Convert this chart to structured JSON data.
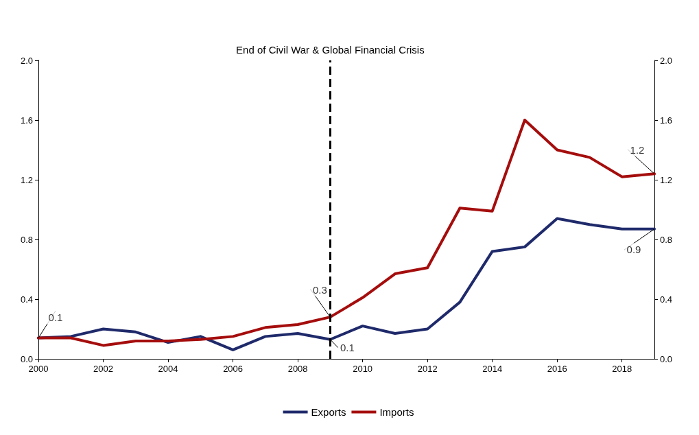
{
  "chart_data": {
    "type": "line",
    "x": [
      2000,
      2001,
      2002,
      2003,
      2004,
      2005,
      2006,
      2007,
      2008,
      2009,
      2010,
      2011,
      2012,
      2013,
      2014,
      2015,
      2016,
      2017,
      2018,
      2019
    ],
    "series": [
      {
        "name": "Exports",
        "color": "#1f2a6b",
        "values": [
          0.14,
          0.15,
          0.2,
          0.18,
          0.11,
          0.15,
          0.06,
          0.15,
          0.17,
          0.13,
          0.22,
          0.17,
          0.2,
          0.38,
          0.72,
          0.75,
          0.94,
          0.9,
          0.87,
          0.87
        ]
      },
      {
        "name": "Imports",
        "color": "#a50d0d",
        "values": [
          0.14,
          0.14,
          0.09,
          0.12,
          0.12,
          0.13,
          0.15,
          0.21,
          0.23,
          0.28,
          0.41,
          0.57,
          0.61,
          1.01,
          0.99,
          1.6,
          1.4,
          1.35,
          1.22,
          1.24
        ]
      }
    ],
    "xlim": [
      2000,
      2019
    ],
    "xticks": [
      2000,
      2002,
      2004,
      2006,
      2008,
      2010,
      2012,
      2014,
      2016,
      2018
    ],
    "ylim": [
      0,
      2
    ],
    "yticks": [
      {
        "value": 0,
        "label": "0.0"
      },
      {
        "value": 0.4,
        "label": "0.4"
      },
      {
        "value": 0.8,
        "label": "0.8"
      },
      {
        "value": 1.2,
        "label": "1.2"
      },
      {
        "value": 1.6,
        "label": "1.6"
      },
      {
        "value": 2,
        "label": "2.0"
      }
    ],
    "y2lim": [
      0,
      2
    ],
    "y2ticks": [
      {
        "value": 0,
        "label": "0.0"
      },
      {
        "value": 0.4,
        "label": "0.4"
      },
      {
        "value": 0.8,
        "label": "0.8"
      },
      {
        "value": 1.2,
        "label": "1.2"
      },
      {
        "value": 1.6,
        "label": "1.6"
      },
      {
        "value": 2,
        "label": "2.0"
      }
    ],
    "ref_lines": [
      {
        "axis": "x",
        "value": 2009,
        "label": "End of Civil War & Global Financial Crisis",
        "color": "#000000",
        "line_style": "dashed"
      }
    ],
    "annotations": [
      {
        "text": "0.1",
        "x": 2000,
        "y": 0.14
      },
      {
        "text": "0.3",
        "x": 2009,
        "y": 0.28
      },
      {
        "text": "0.1",
        "x": 2009,
        "y": 0.13
      },
      {
        "text": "1.2",
        "x": 2019,
        "y": 1.24
      },
      {
        "text": "0.9",
        "x": 2019,
        "y": 0.87
      }
    ],
    "legend": "bottom",
    "grid": false,
    "marker": "none",
    "line_style": "solid"
  }
}
